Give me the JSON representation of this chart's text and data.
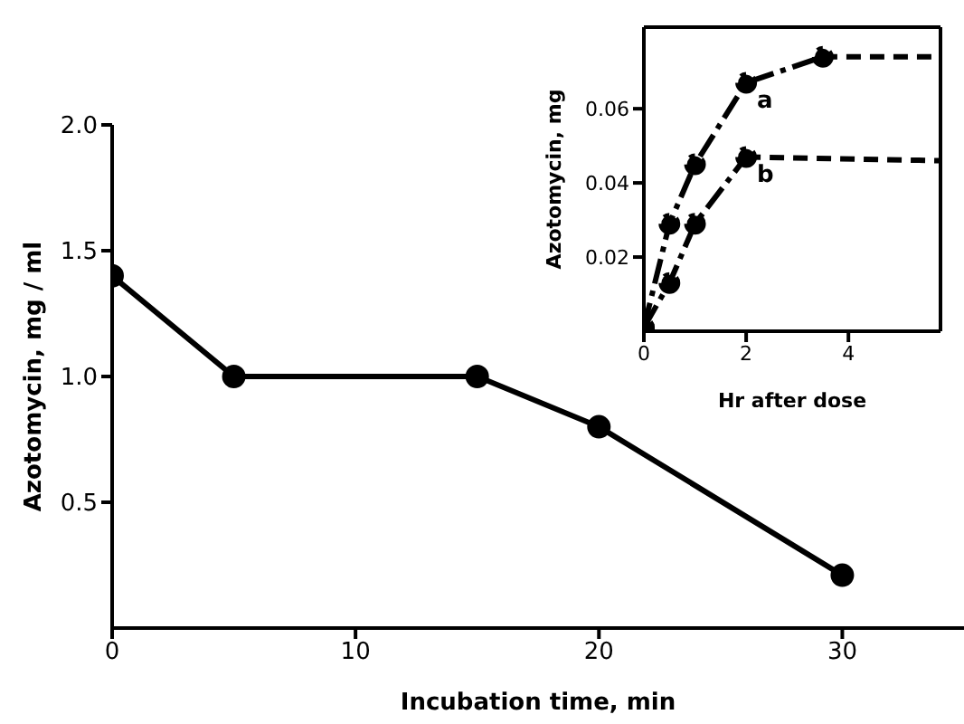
{
  "chart_data": [
    {
      "type": "line",
      "xlabel": "Incubation time, min",
      "ylabel": "Azotomycin, mg / ml",
      "x": [
        0,
        5,
        15,
        20,
        30
      ],
      "series": [
        {
          "color": "#000000",
          "values": [
            1.4,
            1.0,
            1.0,
            0.8,
            0.21
          ]
        }
      ],
      "xlim": [
        0,
        35
      ],
      "xticks": [
        0,
        10,
        20,
        30
      ],
      "ylim": [
        0,
        2.0
      ],
      "yticks": [
        0.5,
        {
          "value": 1.0,
          "label": "1.0"
        },
        1.5,
        {
          "value": 2.0,
          "label": "2.0"
        }
      ],
      "marker": "circle",
      "line_style": "solid"
    },
    {
      "type": "line",
      "xlabel": "Hr after dose",
      "ylabel": "Azotomycin, mg",
      "series": [
        {
          "name": "a",
          "color": "#000000",
          "x": [
            0,
            0.5,
            1,
            2,
            3.5
          ],
          "values": [
            0.001,
            0.029,
            0.045,
            0.067,
            0.074
          ],
          "line_style": "dashed",
          "marker": "circle"
        },
        {
          "color": "#000000",
          "x": [
            3.5,
            5.8
          ],
          "values": [
            0.074,
            0.074
          ],
          "line_style": "dashed",
          "marker": "none"
        },
        {
          "name": "b",
          "color": "#000000",
          "x": [
            0,
            0.5,
            1,
            2
          ],
          "values": [
            0.001,
            0.013,
            0.029,
            0.047
          ],
          "line_style": "dashed",
          "marker": "circle"
        },
        {
          "color": "#000000",
          "x": [
            2,
            5.8
          ],
          "values": [
            0.047,
            0.046
          ],
          "line_style": "dashed",
          "marker": "none"
        }
      ],
      "xlim": [
        0,
        5.8
      ],
      "xticks": [
        0,
        2,
        4
      ],
      "ylim": [
        0,
        0.082
      ],
      "yticks": [
        0.02,
        0.04,
        0.06
      ]
    }
  ]
}
